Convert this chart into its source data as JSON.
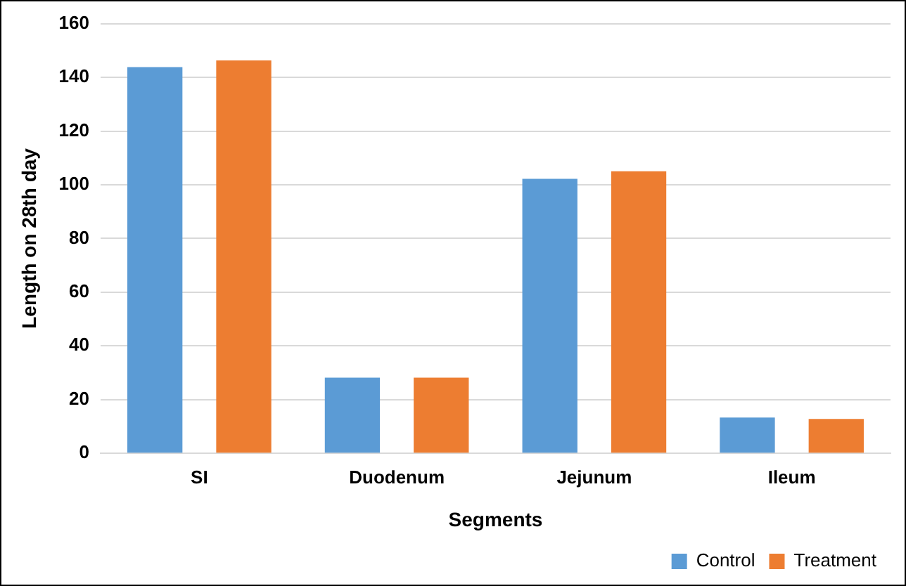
{
  "chart_data": {
    "type": "bar",
    "xlabel": "Segments",
    "ylabel": "Length on 28th day",
    "categories": [
      "SI",
      "Duodenum",
      "Jejunum",
      "Ileum"
    ],
    "series": [
      {
        "name": "Control",
        "color": "#5b9bd5",
        "values": [
          143.8,
          28.2,
          102.2,
          13.3
        ]
      },
      {
        "name": "Treatment",
        "color": "#ed7d31",
        "values": [
          146.3,
          28.2,
          105.0,
          12.8
        ]
      }
    ],
    "ylim": [
      0,
      160
    ],
    "yticks": [
      0,
      20,
      40,
      60,
      80,
      100,
      120,
      140,
      160
    ],
    "grid": "y",
    "legend": "bottom right"
  }
}
